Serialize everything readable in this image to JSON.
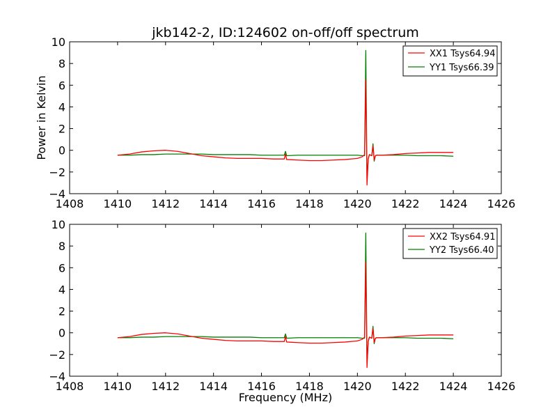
{
  "chart_data": [
    {
      "type": "line",
      "title": "jkb142-2, ID:124602 on-off/off spectrum",
      "xlabel": "",
      "ylabel": "Power in Kelvin",
      "xlim": [
        1408,
        1426
      ],
      "ylim": [
        -4,
        10
      ],
      "xticks": [
        1408,
        1410,
        1412,
        1414,
        1416,
        1418,
        1420,
        1422,
        1424,
        1426
      ],
      "yticks": [
        -4,
        -2,
        0,
        2,
        4,
        6,
        8,
        10
      ],
      "legend_position": "top-right",
      "series": [
        {
          "name": "XX1 Tsys64.94",
          "color": "#ff0000",
          "x": [
            1410.0,
            1410.5,
            1411.0,
            1411.5,
            1412.0,
            1412.5,
            1413.0,
            1413.5,
            1414.0,
            1414.5,
            1415.0,
            1415.5,
            1416.0,
            1416.5,
            1416.95,
            1417.0,
            1417.05,
            1417.5,
            1418.0,
            1418.5,
            1419.0,
            1419.5,
            1420.0,
            1420.2,
            1420.3,
            1420.35,
            1420.4,
            1420.45,
            1420.5,
            1420.6,
            1420.65,
            1420.7,
            1420.75,
            1420.8,
            1421.0,
            1421.5,
            1422.0,
            1422.5,
            1423.0,
            1423.5,
            1424.0
          ],
          "y": [
            -0.45,
            -0.35,
            -0.15,
            -0.05,
            0.0,
            -0.1,
            -0.3,
            -0.5,
            -0.6,
            -0.7,
            -0.75,
            -0.75,
            -0.75,
            -0.8,
            -0.8,
            -0.35,
            -0.85,
            -0.9,
            -0.95,
            -0.95,
            -0.9,
            -0.85,
            -0.75,
            -0.6,
            -0.4,
            6.5,
            -3.2,
            -0.8,
            -0.4,
            -0.5,
            0.4,
            -0.9,
            -0.5,
            -0.45,
            -0.45,
            -0.4,
            -0.3,
            -0.25,
            -0.2,
            -0.2,
            -0.2
          ]
        },
        {
          "name": "YY1 Tsys66.39",
          "color": "#008000",
          "x": [
            1410.0,
            1410.5,
            1411.0,
            1411.5,
            1412.0,
            1412.5,
            1413.0,
            1413.5,
            1414.0,
            1414.5,
            1415.0,
            1415.5,
            1416.0,
            1416.5,
            1416.95,
            1417.0,
            1417.05,
            1417.5,
            1418.0,
            1418.5,
            1419.0,
            1419.5,
            1420.0,
            1420.2,
            1420.3,
            1420.35,
            1420.4,
            1420.45,
            1420.5,
            1420.6,
            1420.65,
            1420.7,
            1420.75,
            1420.8,
            1421.0,
            1421.5,
            1422.0,
            1422.5,
            1423.0,
            1423.5,
            1424.0
          ],
          "y": [
            -0.45,
            -0.45,
            -0.4,
            -0.4,
            -0.35,
            -0.35,
            -0.35,
            -0.35,
            -0.4,
            -0.4,
            -0.4,
            -0.4,
            -0.45,
            -0.45,
            -0.45,
            -0.1,
            -0.5,
            -0.45,
            -0.45,
            -0.45,
            -0.45,
            -0.45,
            -0.45,
            -0.5,
            -0.5,
            9.2,
            -2.8,
            -0.8,
            -0.4,
            -0.5,
            0.6,
            -1.0,
            -0.5,
            -0.45,
            -0.45,
            -0.45,
            -0.45,
            -0.5,
            -0.5,
            -0.5,
            -0.55
          ]
        }
      ]
    },
    {
      "type": "line",
      "title": "",
      "xlabel": "Frequency (MHz)",
      "ylabel": "",
      "xlim": [
        1408,
        1426
      ],
      "ylim": [
        -4,
        10
      ],
      "xticks": [
        1408,
        1410,
        1412,
        1414,
        1416,
        1418,
        1420,
        1422,
        1424,
        1426
      ],
      "yticks": [
        -4,
        -2,
        0,
        2,
        4,
        6,
        8,
        10
      ],
      "legend_position": "top-right",
      "series": [
        {
          "name": "XX2 Tsys64.91",
          "color": "#ff0000",
          "x": [
            1410.0,
            1410.5,
            1411.0,
            1411.5,
            1412.0,
            1412.5,
            1413.0,
            1413.5,
            1414.0,
            1414.5,
            1415.0,
            1415.5,
            1416.0,
            1416.5,
            1416.95,
            1417.0,
            1417.05,
            1417.5,
            1418.0,
            1418.5,
            1419.0,
            1419.5,
            1420.0,
            1420.2,
            1420.3,
            1420.35,
            1420.4,
            1420.45,
            1420.5,
            1420.6,
            1420.65,
            1420.7,
            1420.75,
            1420.8,
            1421.0,
            1421.5,
            1422.0,
            1422.5,
            1423.0,
            1423.5,
            1424.0
          ],
          "y": [
            -0.45,
            -0.35,
            -0.15,
            -0.05,
            0.0,
            -0.1,
            -0.3,
            -0.5,
            -0.6,
            -0.7,
            -0.75,
            -0.75,
            -0.75,
            -0.8,
            -0.8,
            -0.35,
            -0.85,
            -0.9,
            -0.95,
            -0.95,
            -0.9,
            -0.85,
            -0.75,
            -0.6,
            -0.4,
            6.5,
            -3.2,
            -0.8,
            -0.4,
            -0.5,
            0.4,
            -0.9,
            -0.5,
            -0.45,
            -0.45,
            -0.4,
            -0.3,
            -0.25,
            -0.2,
            -0.2,
            -0.2
          ]
        },
        {
          "name": "YY2 Tsys66.40",
          "color": "#008000",
          "x": [
            1410.0,
            1410.5,
            1411.0,
            1411.5,
            1412.0,
            1412.5,
            1413.0,
            1413.5,
            1414.0,
            1414.5,
            1415.0,
            1415.5,
            1416.0,
            1416.5,
            1416.95,
            1417.0,
            1417.05,
            1417.5,
            1418.0,
            1418.5,
            1419.0,
            1419.5,
            1420.0,
            1420.2,
            1420.3,
            1420.35,
            1420.4,
            1420.45,
            1420.5,
            1420.6,
            1420.65,
            1420.7,
            1420.75,
            1420.8,
            1421.0,
            1421.5,
            1422.0,
            1422.5,
            1423.0,
            1423.5,
            1424.0
          ],
          "y": [
            -0.45,
            -0.45,
            -0.4,
            -0.4,
            -0.35,
            -0.35,
            -0.35,
            -0.35,
            -0.4,
            -0.4,
            -0.4,
            -0.4,
            -0.45,
            -0.45,
            -0.45,
            -0.1,
            -0.5,
            -0.45,
            -0.45,
            -0.45,
            -0.45,
            -0.45,
            -0.45,
            -0.5,
            -0.5,
            9.2,
            -2.8,
            -0.8,
            -0.4,
            -0.5,
            0.6,
            -1.0,
            -0.5,
            -0.45,
            -0.45,
            -0.45,
            -0.45,
            -0.5,
            -0.5,
            -0.5,
            -0.55
          ]
        }
      ]
    }
  ]
}
